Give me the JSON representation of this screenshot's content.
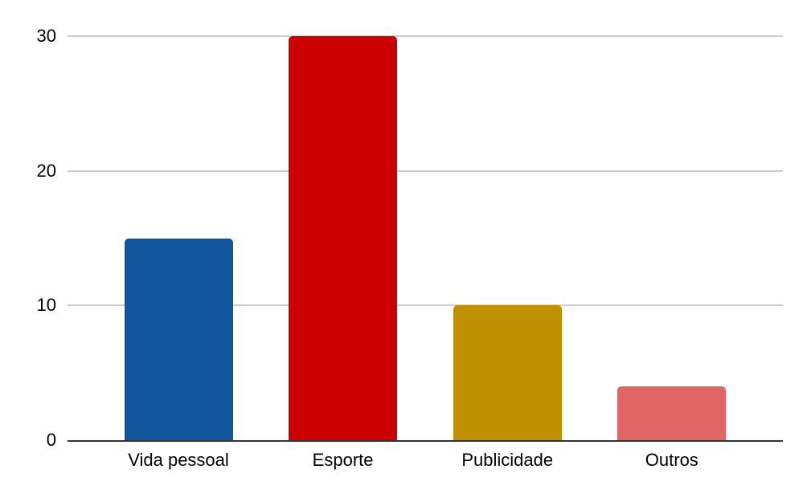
{
  "chart_data": {
    "type": "bar",
    "title": "",
    "xlabel": "",
    "ylabel": "",
    "categories": [
      "Vida pessoal",
      "Esporte",
      "Publicidade",
      "Outros"
    ],
    "values": [
      15,
      30,
      10,
      4
    ],
    "bar_colors": [
      "#11569d",
      "#cc0000",
      "#bf9000",
      "#e06666"
    ],
    "yticks": [
      0,
      10,
      20,
      30
    ],
    "ylim": [
      0,
      32.7
    ],
    "grid": true,
    "legend": false,
    "gridline_color": "#cccccc",
    "axis_line_color": "#333333",
    "tick_text_color": "#000000",
    "background_color": "#ffffff"
  }
}
